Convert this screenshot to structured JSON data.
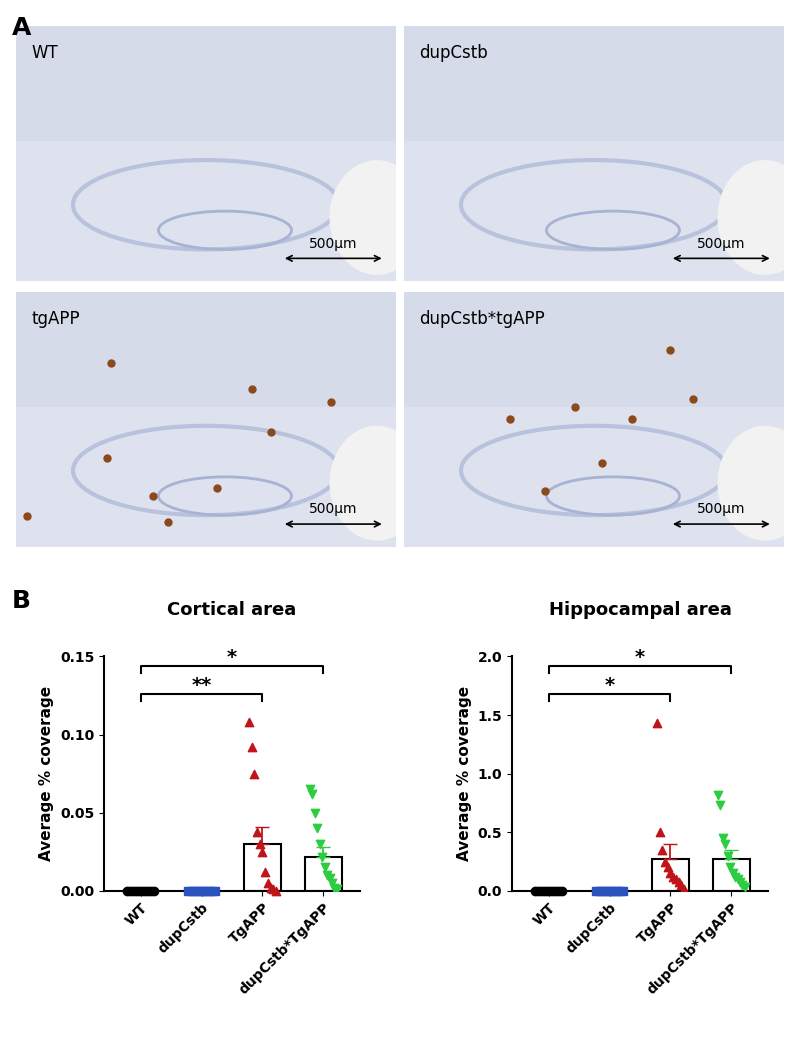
{
  "panel_labels": [
    "A",
    "B"
  ],
  "images": [
    {
      "label": "WT",
      "scale_bar": "500µm"
    },
    {
      "label": "dupCstb",
      "scale_bar": "500µm"
    },
    {
      "label": "tgAPP",
      "scale_bar": "500µm"
    },
    {
      "label": "dupCstb*tgAPP",
      "scale_bar": "500µm"
    }
  ],
  "chart_data": [
    {
      "type": "bar",
      "title": "Cortical area",
      "y_label": "Average % coverage",
      "categories": [
        "WT",
        "dupCstb",
        "TgAPP",
        "dupCstb*TgAPP"
      ],
      "values": [
        0.0,
        0.0,
        0.03,
        0.022
      ],
      "errors": [
        0.0,
        0.0,
        0.011,
        0.006
      ],
      "colors": [
        "#000000",
        "#2a52be",
        "#c0141c",
        "#2ecc40"
      ],
      "markers": [
        "circle",
        "square",
        "triangle_up",
        "triangle_down"
      ],
      "points": [
        [
          0,
          0,
          0,
          0,
          0,
          0,
          0,
          0,
          0,
          0
        ],
        [
          0,
          0,
          0,
          0,
          0,
          0,
          0,
          0,
          0,
          0
        ],
        [
          0.108,
          0.092,
          0.075,
          0.038,
          0.03,
          0.025,
          0.012,
          0.005,
          0.002,
          0.001,
          0.0
        ],
        [
          0.065,
          0.062,
          0.05,
          0.04,
          0.03,
          0.022,
          0.015,
          0.01,
          0.008,
          0.005,
          0.002,
          0.001
        ]
      ],
      "significance": [
        {
          "pair": [
            0,
            2
          ],
          "label": "**"
        },
        {
          "pair": [
            0,
            3
          ],
          "label": "*"
        }
      ],
      "ylim": [
        0,
        0.15
      ],
      "yticks": [
        {
          "value": 0,
          "label": "0.00"
        },
        {
          "value": 0.05,
          "label": "0.05"
        },
        {
          "value": 0.1,
          "label": "0.10"
        },
        {
          "value": 0.15,
          "label": "0.15"
        }
      ]
    },
    {
      "type": "bar",
      "title": "Hippocampal area",
      "y_label": "Average % coverage",
      "categories": [
        "WT",
        "dupCstb",
        "TgAPP",
        "dupCstb*TgAPP"
      ],
      "values": [
        0.0,
        0.0,
        0.27,
        0.27
      ],
      "errors": [
        0.0,
        0.0,
        0.13,
        0.08
      ],
      "colors": [
        "#000000",
        "#2a52be",
        "#c0141c",
        "#2ecc40"
      ],
      "markers": [
        "circle",
        "square",
        "triangle_up",
        "triangle_down"
      ],
      "points": [
        [
          0,
          0,
          0,
          0,
          0,
          0,
          0,
          0,
          0,
          0
        ],
        [
          0,
          0,
          0,
          0,
          0,
          0,
          0,
          0,
          0,
          0
        ],
        [
          1.43,
          0.5,
          0.35,
          0.25,
          0.2,
          0.15,
          0.12,
          0.1,
          0.08,
          0.05,
          0.02
        ],
        [
          0.82,
          0.73,
          0.45,
          0.4,
          0.3,
          0.2,
          0.15,
          0.12,
          0.1,
          0.08,
          0.05,
          0.03
        ]
      ],
      "significance": [
        {
          "pair": [
            0,
            2
          ],
          "label": "*"
        },
        {
          "pair": [
            0,
            3
          ],
          "label": "*"
        }
      ],
      "ylim": [
        0,
        2.0
      ],
      "yticks": [
        {
          "value": 0,
          "label": "0.0"
        },
        {
          "value": 0.5,
          "label": "0.5"
        },
        {
          "value": 1.0,
          "label": "1.0"
        },
        {
          "value": 1.5,
          "label": "1.5"
        },
        {
          "value": 2.0,
          "label": "2.0"
        }
      ]
    }
  ]
}
